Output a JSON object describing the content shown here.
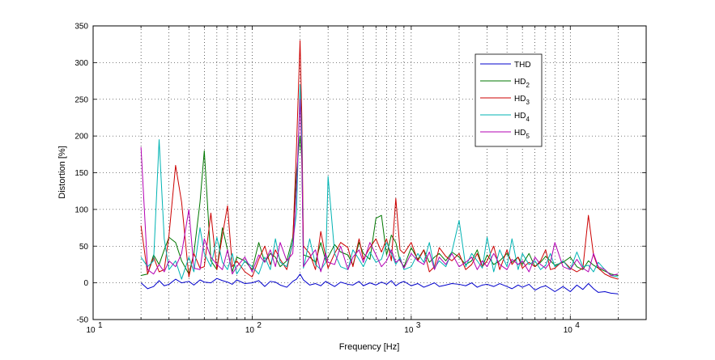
{
  "chart_data": {
    "type": "line",
    "title": "",
    "xlabel": "Frequency [Hz]",
    "ylabel": "Distortion [%]",
    "xscale": "log",
    "xlim": [
      10,
      30000
    ],
    "ylim": [
      -50,
      350
    ],
    "yticks": [
      -50,
      0,
      50,
      100,
      150,
      200,
      250,
      300,
      350
    ],
    "xticks": [
      {
        "value": 10,
        "base": "10",
        "exp": "1"
      },
      {
        "value": 100,
        "base": "10",
        "exp": "2"
      },
      {
        "value": 1000,
        "base": "10",
        "exp": "3"
      },
      {
        "value": 10000,
        "base": "10",
        "exp": "4"
      }
    ],
    "grid": true,
    "legend_position": "top-right",
    "x": [
      20,
      22,
      24,
      26,
      28,
      30,
      33,
      36,
      40,
      43,
      47,
      50,
      55,
      60,
      65,
      70,
      75,
      80,
      90,
      100,
      110,
      120,
      130,
      140,
      150,
      165,
      180,
      190,
      200,
      205,
      210,
      230,
      250,
      270,
      290,
      300,
      330,
      360,
      400,
      430,
      470,
      500,
      550,
      600,
      650,
      700,
      750,
      800,
      850,
      900,
      1000,
      1100,
      1200,
      1300,
      1400,
      1500,
      1650,
      1800,
      2000,
      2200,
      2400,
      2600,
      2800,
      3000,
      3300,
      3600,
      4000,
      4300,
      4700,
      5000,
      5500,
      6000,
      6500,
      7000,
      7500,
      8000,
      9000,
      10000,
      11000,
      12000,
      13000,
      14000,
      15000,
      16500,
      18000,
      20000
    ],
    "series": [
      {
        "name": "THD",
        "label_base": "THD",
        "label_sub": "",
        "color": "#0000cc",
        "values": [
          0,
          -8,
          -5,
          3,
          -4,
          -2,
          5,
          0,
          2,
          -3,
          4,
          1,
          0,
          6,
          3,
          1,
          -2,
          4,
          -1,
          0,
          3,
          -5,
          2,
          1,
          -3,
          -6,
          2,
          5,
          12,
          8,
          4,
          -3,
          -1,
          -4,
          2,
          0,
          -5,
          1,
          -2,
          -3,
          2,
          -4,
          0,
          -3,
          1,
          -2,
          3,
          -4,
          0,
          2,
          -4,
          -1,
          -6,
          -3,
          0,
          -5,
          -3,
          -1,
          -2,
          -4,
          0,
          -6,
          -3,
          -2,
          -5,
          -1,
          -5,
          -8,
          -3,
          -6,
          -2,
          -10,
          -6,
          -4,
          -8,
          -12,
          -5,
          -12,
          -3,
          -9,
          -1,
          -8,
          -13,
          -12,
          -14,
          -15
        ]
      },
      {
        "name": "HD2",
        "label_base": "HD",
        "label_sub": "2",
        "color": "#007700",
        "values": [
          10,
          12,
          38,
          25,
          45,
          62,
          55,
          30,
          12,
          40,
          110,
          180,
          30,
          18,
          75,
          45,
          15,
          35,
          30,
          18,
          55,
          28,
          40,
          35,
          22,
          30,
          62,
          150,
          200,
          170,
          38,
          35,
          28,
          55,
          30,
          35,
          52,
          42,
          38,
          24,
          55,
          40,
          32,
          88,
          92,
          38,
          65,
          55,
          30,
          22,
          48,
          32,
          45,
          28,
          35,
          40,
          30,
          42,
          35,
          25,
          30,
          45,
          22,
          38,
          25,
          30,
          40,
          28,
          35,
          25,
          40,
          22,
          28,
          36,
          30,
          24,
          28,
          35,
          22,
          18,
          30,
          24,
          20,
          16,
          12,
          10
        ]
      },
      {
        "name": "HD3",
        "label_base": "HD",
        "label_sub": "3",
        "color": "#cc0000",
        "values": [
          78,
          12,
          35,
          15,
          18,
          65,
          160,
          110,
          8,
          40,
          20,
          22,
          95,
          18,
          65,
          105,
          22,
          30,
          15,
          8,
          32,
          50,
          25,
          45,
          32,
          18,
          55,
          185,
          330,
          230,
          50,
          40,
          18,
          70,
          35,
          20,
          40,
          55,
          48,
          22,
          60,
          32,
          48,
          60,
          42,
          60,
          30,
          115,
          45,
          40,
          55,
          30,
          45,
          15,
          22,
          48,
          36,
          30,
          40,
          18,
          25,
          40,
          22,
          30,
          50,
          18,
          45,
          25,
          35,
          20,
          28,
          22,
          30,
          45,
          18,
          20,
          30,
          20,
          15,
          20,
          92,
          38,
          20,
          12,
          8,
          5
        ]
      },
      {
        "name": "HD4",
        "label_base": "HD",
        "label_sub": "4",
        "color": "#00b3b3",
        "values": [
          35,
          22,
          30,
          195,
          60,
          18,
          30,
          5,
          35,
          15,
          75,
          40,
          22,
          62,
          28,
          18,
          40,
          12,
          30,
          22,
          12,
          35,
          18,
          60,
          28,
          22,
          55,
          95,
          270,
          200,
          20,
          60,
          25,
          18,
          28,
          145,
          40,
          22,
          18,
          45,
          32,
          22,
          42,
          28,
          32,
          55,
          40,
          25,
          35,
          18,
          22,
          40,
          28,
          55,
          20,
          30,
          22,
          42,
          85,
          22,
          40,
          30,
          20,
          62,
          15,
          45,
          22,
          60,
          18,
          40,
          25,
          30,
          18,
          24,
          40,
          22,
          30,
          18,
          42,
          22,
          24,
          15,
          28,
          18,
          10,
          8
        ]
      },
      {
        "name": "HD5",
        "label_base": "HD",
        "label_sub": "5",
        "color": "#b300b3",
        "values": [
          185,
          18,
          12,
          25,
          15,
          30,
          22,
          40,
          100,
          20,
          18,
          60,
          35,
          25,
          18,
          45,
          12,
          22,
          35,
          15,
          38,
          28,
          45,
          22,
          55,
          30,
          40,
          130,
          250,
          180,
          22,
          35,
          45,
          15,
          40,
          28,
          25,
          50,
          18,
          35,
          45,
          28,
          55,
          38,
          22,
          30,
          45,
          28,
          32,
          20,
          40,
          30,
          25,
          42,
          18,
          35,
          25,
          40,
          22,
          28,
          35,
          18,
          30,
          22,
          40,
          25,
          18,
          32,
          25,
          30,
          15,
          35,
          25,
          20,
          28,
          55,
          22,
          18,
          32,
          20,
          15,
          40,
          22,
          18,
          10,
          12
        ]
      }
    ]
  }
}
